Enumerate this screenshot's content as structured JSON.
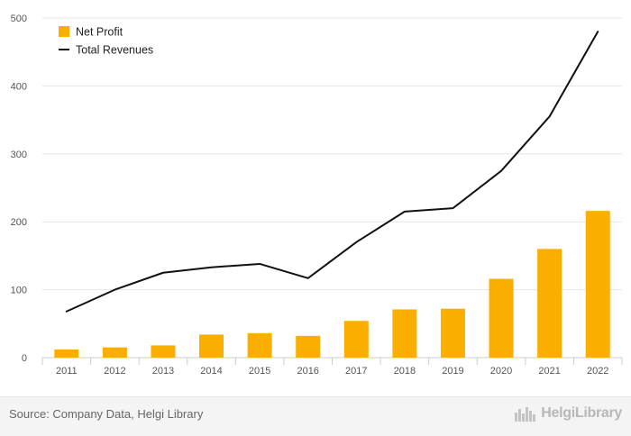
{
  "chart_data": {
    "type": "bar",
    "categories": [
      "2011",
      "2012",
      "2013",
      "2014",
      "2015",
      "2016",
      "2017",
      "2018",
      "2019",
      "2020",
      "2021",
      "2022"
    ],
    "series": [
      {
        "name": "Net Profit",
        "kind": "bar",
        "color": "#f9ae00",
        "values": [
          12,
          15,
          18,
          34,
          36,
          32,
          54,
          71,
          72,
          116,
          160,
          216
        ]
      },
      {
        "name": "Total Revenues",
        "kind": "line",
        "color": "#111111",
        "values": [
          68,
          100,
          125,
          133,
          138,
          117,
          170,
          215,
          220,
          275,
          355,
          480
        ]
      }
    ],
    "yticks": [
      0,
      100,
      200,
      300,
      400,
      500
    ],
    "ylim": [
      0,
      500
    ],
    "grid": true,
    "legend": "top-left"
  },
  "footer": {
    "source": "Source: Company Data, Helgi Library",
    "brand": "HelgiLibrary"
  }
}
